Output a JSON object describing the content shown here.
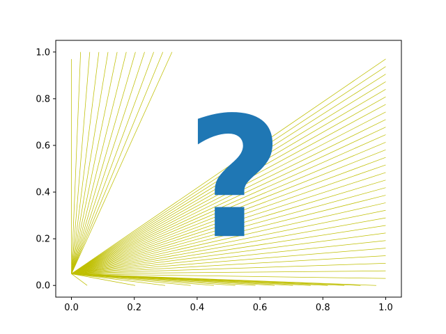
{
  "chart_data": {
    "type": "line",
    "title": "",
    "xlabel": "",
    "ylabel": "",
    "xlim": [
      -0.05,
      1.05
    ],
    "ylim": [
      -0.05,
      1.05
    ],
    "grid": false,
    "legend": "none",
    "line_color": "#bfbf00",
    "x_ticks": [
      "0.0",
      "0.2",
      "0.4",
      "0.6",
      "0.8",
      "1.0"
    ],
    "y_ticks": [
      "0.0",
      "0.2",
      "0.4",
      "0.6",
      "0.8",
      "1.0"
    ],
    "origin": [
      0.0,
      0.05
    ],
    "fans": [
      {
        "name": "steep-fan",
        "edge": "y=1",
        "x_from": 0.0,
        "x_to": 0.32,
        "count": 12,
        "first_endpoint": [
          0.0,
          0.97
        ]
      },
      {
        "name": "right-fan",
        "edge": "x=1",
        "y_from": 0.03,
        "y_to": 0.97,
        "count": 30
      },
      {
        "name": "low-fan",
        "edge": "near y=0",
        "x_from": 0.05,
        "x_to": 0.97,
        "y_end": 0.0,
        "count": 14
      }
    ],
    "annotation": {
      "text": "?",
      "x": 0.52,
      "y": 0.45,
      "color": "#1f77b4"
    }
  }
}
